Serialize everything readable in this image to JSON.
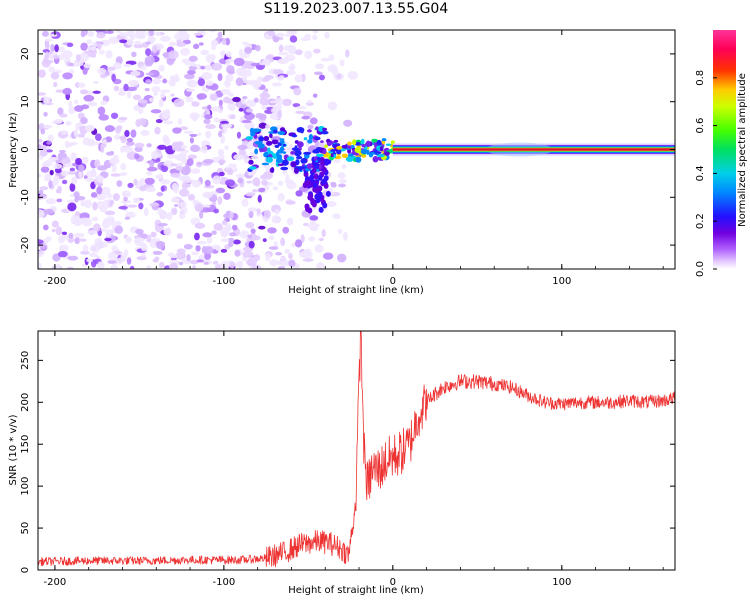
{
  "title": "S119.2023.007.13.55.G04",
  "colors": {
    "snr_line": "#ee3333",
    "carrier_band": "#dd1133",
    "scatter_dark": "#5500cc",
    "scatter_light": "#cc99ff",
    "background": "#ffffff"
  },
  "chart_data": [
    {
      "type": "heatmap",
      "title": "",
      "xlabel": "Height of straight line (km)",
      "ylabel": "Frequency (Hz)",
      "xlim": [
        -210,
        167
      ],
      "ylim": [
        -25,
        25
      ],
      "xticks": [
        -200,
        -100,
        0,
        100
      ],
      "yticks": [
        -20,
        -10,
        0,
        10,
        20
      ],
      "xtick_labels": [
        "-200",
        "-100",
        "0",
        "100"
      ],
      "ytick_labels": [
        "-20",
        "-10",
        "0",
        "10",
        "20"
      ],
      "grid": false,
      "colorbar": {
        "label": "Normalized spectral amplitude",
        "range": [
          0,
          1
        ],
        "ticks": [
          0,
          0.2,
          0.4,
          0.6,
          0.8
        ],
        "tick_labels": [
          "0.0",
          "0.2",
          "0.4",
          "0.6",
          "0.8"
        ],
        "colormap": "rainbow (white/lavender → purple → blue → cyan → green → yellow → red → magenta)"
      },
      "features": {
        "noise_region_x": [
          -210,
          -75
        ],
        "carrier_onset_x": -85,
        "carrier_center_freq": 0,
        "lower_tail_x": [
          -50,
          -40
        ],
        "lower_tail_freq": [
          -13,
          -2
        ]
      }
    },
    {
      "type": "line",
      "title": "",
      "xlabel": "Height of straight line (km)",
      "ylabel": "SNR (10 * v/v)",
      "xlim": [
        -210,
        167
      ],
      "ylim": [
        0,
        285
      ],
      "xticks": [
        -200,
        -100,
        0,
        100
      ],
      "yticks": [
        0,
        50,
        100,
        150,
        200,
        250
      ],
      "xtick_labels": [
        "-200",
        "-100",
        "0",
        "100"
      ],
      "ytick_labels": [
        "0",
        "50",
        "100",
        "150",
        "200",
        "250"
      ],
      "grid": false,
      "series": [
        {
          "x": [
            -210,
            -180,
            -150,
            -120,
            -90,
            -75,
            -65,
            -55,
            -45,
            -38,
            -32,
            -26,
            -22,
            -19,
            -17,
            -15,
            -12,
            -8,
            -4,
            0,
            5,
            10,
            15,
            20,
            25,
            30,
            40,
            50,
            60,
            70,
            80,
            90,
            100,
            110,
            120,
            130,
            140,
            150,
            160,
            167
          ],
          "y": [
            10,
            11,
            11,
            12,
            12,
            14,
            20,
            30,
            34,
            33,
            27,
            18,
            80,
            285,
            140,
            100,
            120,
            120,
            130,
            135,
            140,
            150,
            185,
            200,
            210,
            218,
            225,
            225,
            222,
            218,
            208,
            200,
            198,
            200,
            200,
            200,
            202,
            200,
            202,
            205
          ]
        }
      ]
    }
  ]
}
